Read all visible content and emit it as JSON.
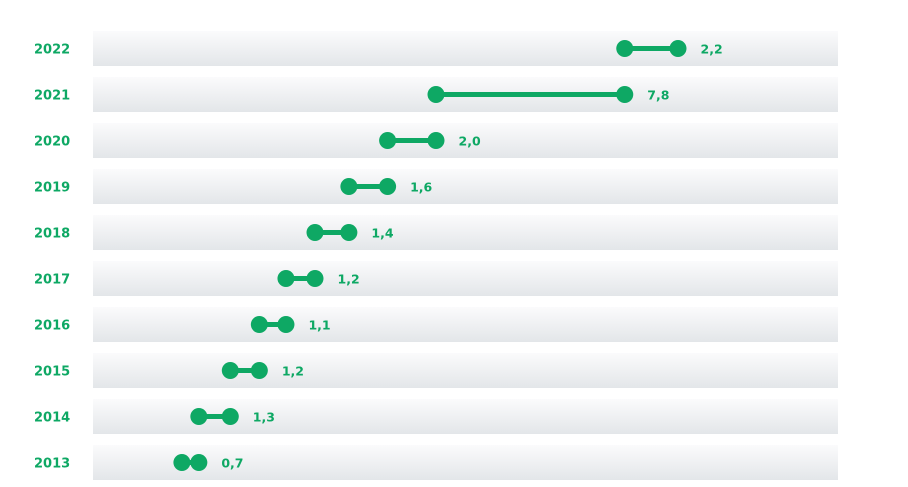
{
  "colors": {
    "accent": "#0ea864",
    "band_top": "#fbfbfc",
    "band_bottom": "#e3e6e9",
    "label": "#0ea864"
  },
  "chart_data": {
    "type": "dumbbell",
    "title": "",
    "xlabel": "",
    "ylabel": "",
    "grid": false,
    "x_axis_visible": false,
    "categories": [
      "2022",
      "2021",
      "2020",
      "2019",
      "2018",
      "2017",
      "2016",
      "2015",
      "2014",
      "2013"
    ],
    "rows": [
      {
        "year": "2022",
        "start": 77.0,
        "end": 79.2,
        "label": "2,2"
      },
      {
        "year": "2021",
        "start": 69.2,
        "end": 77.0,
        "label": "7,8"
      },
      {
        "year": "2020",
        "start": 67.2,
        "end": 69.2,
        "label": "2,0"
      },
      {
        "year": "2019",
        "start": 65.6,
        "end": 67.2,
        "label": "1,6"
      },
      {
        "year": "2018",
        "start": 64.2,
        "end": 65.6,
        "label": "1,4"
      },
      {
        "year": "2017",
        "start": 63.0,
        "end": 64.2,
        "label": "1,2"
      },
      {
        "year": "2016",
        "start": 61.9,
        "end": 63.0,
        "label": "1,1"
      },
      {
        "year": "2015",
        "start": 60.7,
        "end": 61.9,
        "label": "1,2"
      },
      {
        "year": "2014",
        "start": 59.4,
        "end": 60.7,
        "label": "1,3"
      },
      {
        "year": "2013",
        "start": 58.7,
        "end": 59.4,
        "label": "0,7"
      }
    ]
  }
}
